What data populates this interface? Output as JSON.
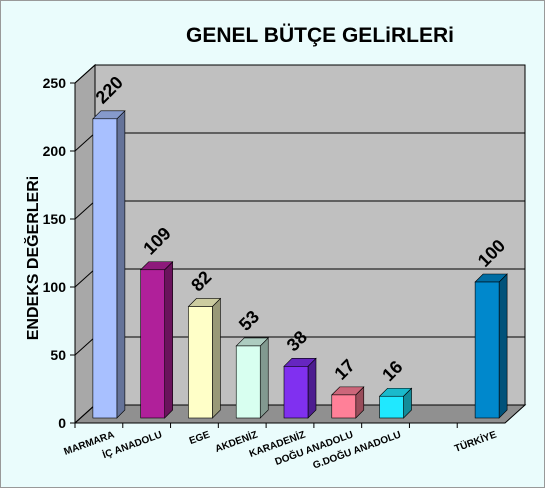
{
  "chart_data": {
    "type": "bar3d",
    "title": "GENEL BÜTÇE GELiRLERi",
    "y_label": "ENDEKS DEĞERLERi",
    "categories": [
      "MARMARA",
      "İÇ ANADOLU",
      "EGE",
      "AKDENİZ",
      "KARADENİZ",
      "DOĞU ANADOLU",
      "G.DOĞU ANADOLU",
      null,
      "TÜRKİYE"
    ],
    "values": [
      220,
      109,
      82,
      53,
      38,
      17,
      16,
      null,
      100
    ],
    "colors": [
      "#a8c0ff",
      "#b0209a",
      "#ffffc8",
      "#d8fff0",
      "#8030f0",
      "#ff8098",
      "#20e8ff",
      null,
      "#0088cc"
    ],
    "ylim": [
      0,
      250
    ],
    "yticks": [
      0,
      50,
      100,
      150,
      200,
      250
    ],
    "grid": true
  }
}
